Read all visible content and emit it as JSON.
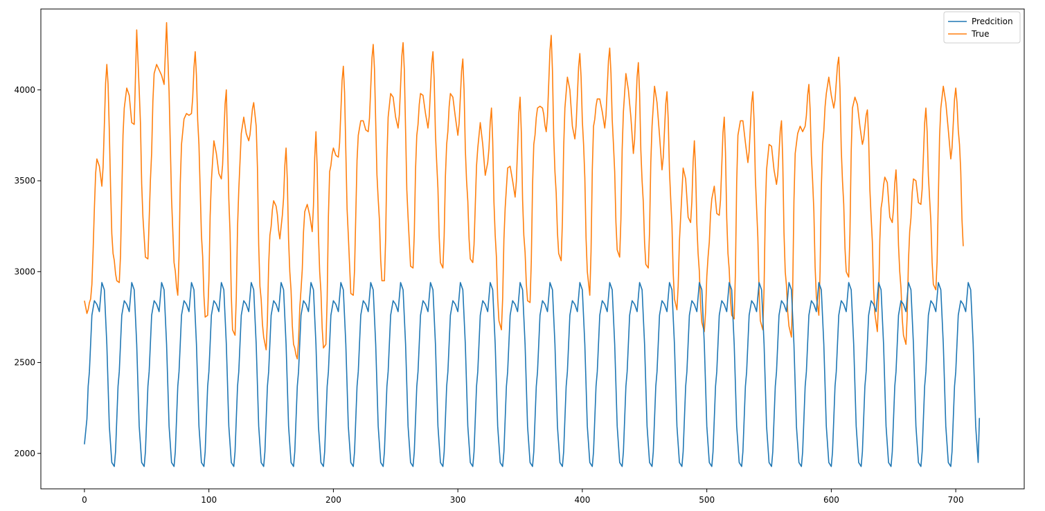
{
  "chart_data": {
    "type": "line",
    "title": "",
    "xlabel": "",
    "ylabel": "",
    "xlim": [
      -35,
      755
    ],
    "ylim": [
      1805,
      4445
    ],
    "xticks": [
      0,
      100,
      200,
      300,
      400,
      500,
      600,
      700
    ],
    "yticks": [
      2000,
      2500,
      3000,
      3500,
      4000
    ],
    "grid": false,
    "legend_position": "top-right",
    "n_points": 720,
    "series": [
      {
        "name": "Predcition",
        "color": "#1f77b4",
        "description": "periodic forecast with period 24, repeating the same daily cycle",
        "period": 24,
        "first_value": 2050,
        "last_value": 2195,
        "cycle_keypoints": [
          [
            0,
            1928
          ],
          [
            4,
            2450
          ],
          [
            6,
            2760
          ],
          [
            8,
            2840
          ],
          [
            10,
            2820
          ],
          [
            12,
            2780
          ],
          [
            14,
            2940
          ],
          [
            16,
            2900
          ],
          [
            18,
            2600
          ],
          [
            20,
            2150
          ],
          [
            22,
            1950
          ],
          [
            24,
            1928
          ]
        ]
      },
      {
        "name": "True",
        "color": "#ff7f0e",
        "peaks": [
          [
            0,
            2840
          ],
          [
            2,
            2770
          ],
          [
            5,
            2850
          ],
          [
            10,
            3620
          ],
          [
            12,
            3580
          ],
          [
            14,
            3470
          ],
          [
            18,
            4140
          ],
          [
            23,
            3100
          ],
          [
            26,
            2950
          ],
          [
            28,
            2940
          ],
          [
            32,
            3900
          ],
          [
            34,
            4010
          ],
          [
            36,
            3970
          ],
          [
            38,
            3820
          ],
          [
            40,
            3810
          ],
          [
            42,
            4330
          ],
          [
            44,
            4000
          ],
          [
            47,
            3300
          ],
          [
            49,
            3080
          ],
          [
            51,
            3070
          ],
          [
            53,
            3500
          ],
          [
            56,
            4090
          ],
          [
            58,
            4140
          ],
          [
            60,
            4110
          ],
          [
            62,
            4080
          ],
          [
            64,
            4030
          ],
          [
            66,
            4370
          ],
          [
            68,
            3990
          ],
          [
            70,
            3400
          ],
          [
            72,
            3050
          ],
          [
            75,
            2870
          ],
          [
            78,
            3700
          ],
          [
            80,
            3840
          ],
          [
            82,
            3870
          ],
          [
            84,
            3860
          ],
          [
            86,
            3870
          ],
          [
            89,
            4210
          ],
          [
            92,
            3700
          ],
          [
            94,
            3200
          ],
          [
            97,
            2750
          ],
          [
            99,
            2760
          ],
          [
            102,
            3500
          ],
          [
            104,
            3720
          ],
          [
            106,
            3650
          ],
          [
            108,
            3540
          ],
          [
            110,
            3510
          ],
          [
            114,
            4000
          ],
          [
            116,
            3400
          ],
          [
            119,
            2680
          ],
          [
            121,
            2650
          ],
          [
            124,
            3450
          ],
          [
            126,
            3760
          ],
          [
            128,
            3850
          ],
          [
            130,
            3760
          ],
          [
            132,
            3720
          ],
          [
            136,
            3930
          ],
          [
            138,
            3800
          ],
          [
            141,
            2920
          ],
          [
            144,
            2640
          ],
          [
            146,
            2570
          ],
          [
            149,
            3200
          ],
          [
            152,
            3390
          ],
          [
            154,
            3360
          ],
          [
            157,
            3180
          ],
          [
            159,
            3310
          ],
          [
            162,
            3680
          ],
          [
            165,
            3000
          ],
          [
            168,
            2600
          ],
          [
            171,
            2520
          ],
          [
            174,
            2900
          ],
          [
            177,
            3330
          ],
          [
            179,
            3370
          ],
          [
            181,
            3310
          ],
          [
            183,
            3220
          ],
          [
            186,
            3770
          ],
          [
            189,
            3000
          ],
          [
            192,
            2580
          ],
          [
            194,
            2600
          ],
          [
            197,
            3550
          ],
          [
            200,
            3680
          ],
          [
            202,
            3640
          ],
          [
            204,
            3630
          ],
          [
            208,
            4130
          ],
          [
            212,
            3200
          ],
          [
            214,
            2880
          ],
          [
            216,
            2870
          ],
          [
            220,
            3750
          ],
          [
            222,
            3830
          ],
          [
            224,
            3830
          ],
          [
            226,
            3780
          ],
          [
            228,
            3770
          ],
          [
            232,
            4250
          ],
          [
            236,
            3400
          ],
          [
            239,
            2950
          ],
          [
            241,
            2950
          ],
          [
            244,
            3850
          ],
          [
            246,
            3980
          ],
          [
            248,
            3960
          ],
          [
            250,
            3850
          ],
          [
            252,
            3790
          ],
          [
            256,
            4260
          ],
          [
            260,
            3300
          ],
          [
            262,
            3030
          ],
          [
            264,
            3020
          ],
          [
            267,
            3750
          ],
          [
            270,
            3980
          ],
          [
            272,
            3970
          ],
          [
            274,
            3870
          ],
          [
            276,
            3790
          ],
          [
            280,
            4210
          ],
          [
            283,
            3600
          ],
          [
            286,
            3050
          ],
          [
            288,
            3020
          ],
          [
            291,
            3700
          ],
          [
            294,
            3980
          ],
          [
            296,
            3960
          ],
          [
            298,
            3850
          ],
          [
            300,
            3750
          ],
          [
            304,
            4170
          ],
          [
            307,
            3500
          ],
          [
            310,
            3070
          ],
          [
            312,
            3050
          ],
          [
            316,
            3680
          ],
          [
            318,
            3820
          ],
          [
            320,
            3700
          ],
          [
            322,
            3530
          ],
          [
            324,
            3600
          ],
          [
            327,
            3900
          ],
          [
            330,
            3200
          ],
          [
            333,
            2730
          ],
          [
            335,
            2680
          ],
          [
            338,
            3350
          ],
          [
            340,
            3570
          ],
          [
            342,
            3580
          ],
          [
            344,
            3500
          ],
          [
            346,
            3410
          ],
          [
            350,
            3960
          ],
          [
            353,
            3200
          ],
          [
            356,
            2840
          ],
          [
            358,
            2830
          ],
          [
            361,
            3700
          ],
          [
            364,
            3900
          ],
          [
            366,
            3910
          ],
          [
            368,
            3900
          ],
          [
            371,
            3770
          ],
          [
            375,
            4300
          ],
          [
            378,
            3550
          ],
          [
            381,
            3100
          ],
          [
            383,
            3060
          ],
          [
            386,
            3900
          ],
          [
            388,
            4070
          ],
          [
            390,
            4000
          ],
          [
            392,
            3800
          ],
          [
            394,
            3730
          ],
          [
            398,
            4200
          ],
          [
            401,
            3700
          ],
          [
            404,
            3000
          ],
          [
            406,
            2870
          ],
          [
            409,
            3800
          ],
          [
            412,
            3950
          ],
          [
            414,
            3950
          ],
          [
            416,
            3880
          ],
          [
            418,
            3790
          ],
          [
            422,
            4230
          ],
          [
            425,
            3700
          ],
          [
            428,
            3120
          ],
          [
            430,
            3080
          ],
          [
            433,
            3880
          ],
          [
            435,
            4090
          ],
          [
            437,
            4000
          ],
          [
            439,
            3850
          ],
          [
            441,
            3650
          ],
          [
            445,
            4150
          ],
          [
            448,
            3500
          ],
          [
            451,
            3040
          ],
          [
            453,
            3020
          ],
          [
            456,
            3800
          ],
          [
            458,
            4020
          ],
          [
            460,
            3930
          ],
          [
            462,
            3750
          ],
          [
            464,
            3560
          ],
          [
            468,
            3990
          ],
          [
            471,
            3400
          ],
          [
            474,
            2850
          ],
          [
            476,
            2790
          ],
          [
            479,
            3300
          ],
          [
            481,
            3570
          ],
          [
            483,
            3510
          ],
          [
            485,
            3300
          ],
          [
            487,
            3270
          ],
          [
            490,
            3720
          ],
          [
            493,
            3100
          ],
          [
            496,
            2720
          ],
          [
            498,
            2670
          ],
          [
            501,
            3080
          ],
          [
            504,
            3400
          ],
          [
            506,
            3470
          ],
          [
            508,
            3320
          ],
          [
            510,
            3310
          ],
          [
            514,
            3850
          ],
          [
            517,
            3100
          ],
          [
            520,
            2760
          ],
          [
            522,
            2740
          ],
          [
            525,
            3750
          ],
          [
            527,
            3830
          ],
          [
            529,
            3830
          ],
          [
            531,
            3710
          ],
          [
            533,
            3600
          ],
          [
            537,
            3990
          ],
          [
            540,
            3350
          ],
          [
            543,
            2730
          ],
          [
            545,
            2680
          ],
          [
            548,
            3560
          ],
          [
            550,
            3700
          ],
          [
            552,
            3690
          ],
          [
            554,
            3560
          ],
          [
            556,
            3480
          ],
          [
            560,
            3830
          ],
          [
            563,
            3000
          ],
          [
            566,
            2700
          ],
          [
            568,
            2640
          ],
          [
            571,
            3650
          ],
          [
            573,
            3760
          ],
          [
            575,
            3800
          ],
          [
            577,
            3770
          ],
          [
            579,
            3800
          ],
          [
            582,
            4030
          ],
          [
            585,
            3500
          ],
          [
            588,
            2860
          ],
          [
            590,
            2760
          ],
          [
            593,
            3700
          ],
          [
            596,
            3980
          ],
          [
            598,
            4070
          ],
          [
            600,
            3970
          ],
          [
            602,
            3900
          ],
          [
            606,
            4180
          ],
          [
            609,
            3500
          ],
          [
            612,
            3000
          ],
          [
            614,
            2970
          ],
          [
            617,
            3900
          ],
          [
            619,
            3960
          ],
          [
            621,
            3920
          ],
          [
            623,
            3800
          ],
          [
            625,
            3700
          ],
          [
            629,
            3890
          ],
          [
            632,
            3300
          ],
          [
            635,
            2770
          ],
          [
            637,
            2670
          ],
          [
            640,
            3350
          ],
          [
            643,
            3520
          ],
          [
            645,
            3490
          ],
          [
            647,
            3300
          ],
          [
            649,
            3270
          ],
          [
            652,
            3560
          ],
          [
            655,
            3000
          ],
          [
            658,
            2650
          ],
          [
            660,
            2600
          ],
          [
            663,
            3220
          ],
          [
            666,
            3510
          ],
          [
            668,
            3500
          ],
          [
            670,
            3380
          ],
          [
            672,
            3370
          ],
          [
            676,
            3900
          ],
          [
            679,
            3400
          ],
          [
            682,
            2930
          ],
          [
            684,
            2900
          ],
          [
            688,
            3900
          ],
          [
            690,
            4020
          ],
          [
            692,
            3930
          ],
          [
            694,
            3780
          ],
          [
            696,
            3620
          ],
          [
            700,
            4010
          ],
          [
            703,
            3700
          ],
          [
            706,
            3140
          ]
        ]
      }
    ]
  }
}
